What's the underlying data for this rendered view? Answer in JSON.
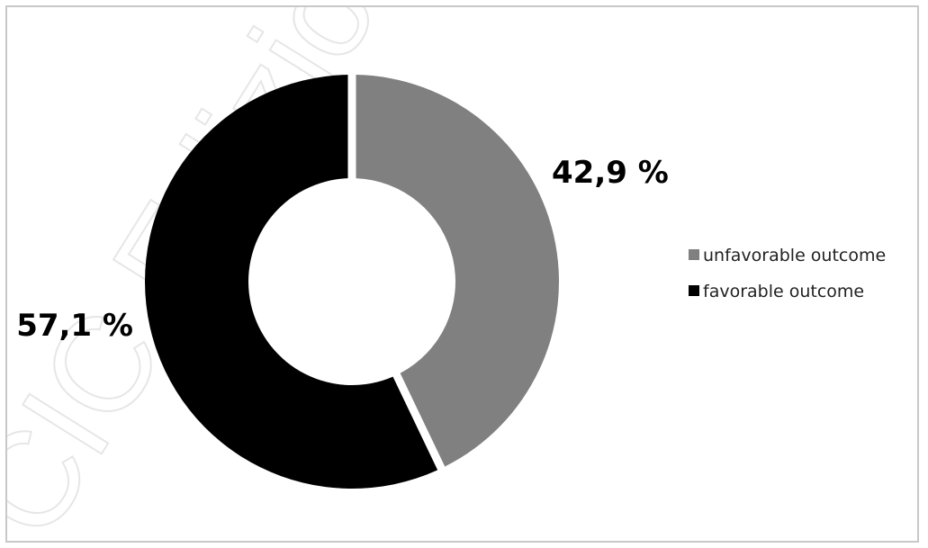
{
  "chart_data": {
    "type": "pie",
    "title": "",
    "donut": true,
    "categories": [
      "unfavorable outcome",
      "favorable outcome"
    ],
    "values": [
      42.9,
      57.1
    ],
    "labels": [
      "42,9 %",
      "57,1 %"
    ],
    "colors": [
      "#808080",
      "#000000"
    ],
    "legend": {
      "position": "right",
      "entries": [
        "unfavorable outcome",
        "favorable outcome"
      ]
    }
  },
  "watermark": {
    "text": "CIC Edizioni Internazionali"
  }
}
